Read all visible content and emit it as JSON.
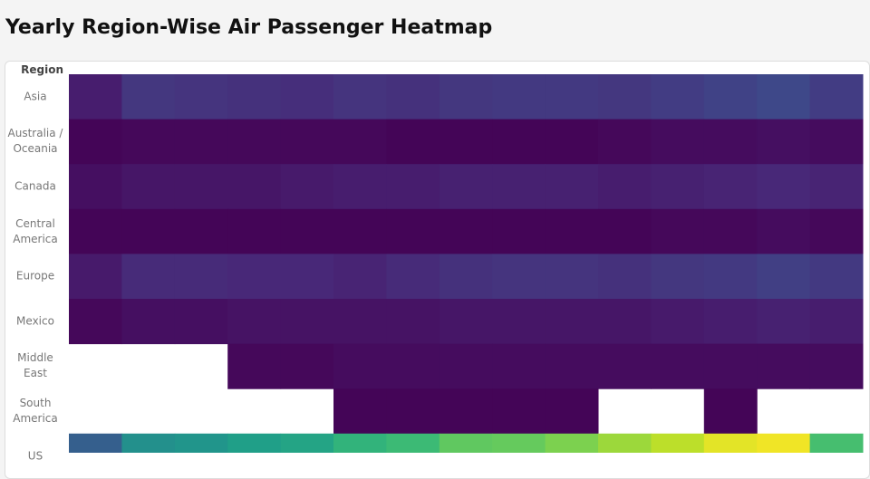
{
  "chart_data": {
    "type": "heatmap",
    "title": "Yearly Region-Wise Air Passenger Heatmap",
    "y_label": "Region",
    "y_categories": [
      "Asia",
      "Australia / Oceania",
      "Canada",
      "Central America",
      "Europe",
      "Mexico",
      "Middle East",
      "South America",
      "US"
    ],
    "x_categories": [
      null,
      null,
      null,
      null,
      null,
      null,
      null,
      null,
      null,
      null,
      null,
      null,
      null,
      null,
      null
    ],
    "values": [
      [
        8,
        16,
        15,
        14,
        13,
        15,
        14,
        16,
        17,
        17,
        16,
        18,
        20,
        22,
        18
      ],
      [
        1,
        2,
        2,
        2,
        2,
        2,
        1,
        1,
        1,
        1,
        2,
        3,
        3,
        4,
        3
      ],
      [
        4,
        6,
        6,
        6,
        7,
        8,
        8,
        9,
        9,
        9,
        8,
        9,
        10,
        11,
        10
      ],
      [
        1,
        1,
        1,
        1,
        1,
        1,
        1,
        1,
        1,
        1,
        1,
        2,
        2,
        3,
        2
      ],
      [
        7,
        12,
        12,
        11,
        11,
        10,
        12,
        14,
        15,
        15,
        14,
        16,
        17,
        19,
        17
      ],
      [
        2,
        4,
        4,
        5,
        5,
        5,
        5,
        6,
        6,
        6,
        6,
        7,
        8,
        9,
        8
      ],
      [
        null,
        null,
        null,
        2,
        2,
        3,
        3,
        3,
        3,
        3,
        3,
        3,
        3,
        3,
        3
      ],
      [
        null,
        null,
        null,
        null,
        null,
        1,
        1,
        1,
        1,
        1,
        null,
        null,
        1,
        null,
        null
      ],
      [
        30,
        50,
        52,
        56,
        58,
        65,
        68,
        75,
        76,
        80,
        85,
        90,
        96,
        98,
        70
      ]
    ],
    "zlim": [
      0,
      100
    ],
    "colorscale": [
      "#440154",
      "#482878",
      "#3e4989",
      "#31688e",
      "#26828e",
      "#1f9e89",
      "#35b779",
      "#6ece58",
      "#b5de2b",
      "#fde725"
    ]
  }
}
